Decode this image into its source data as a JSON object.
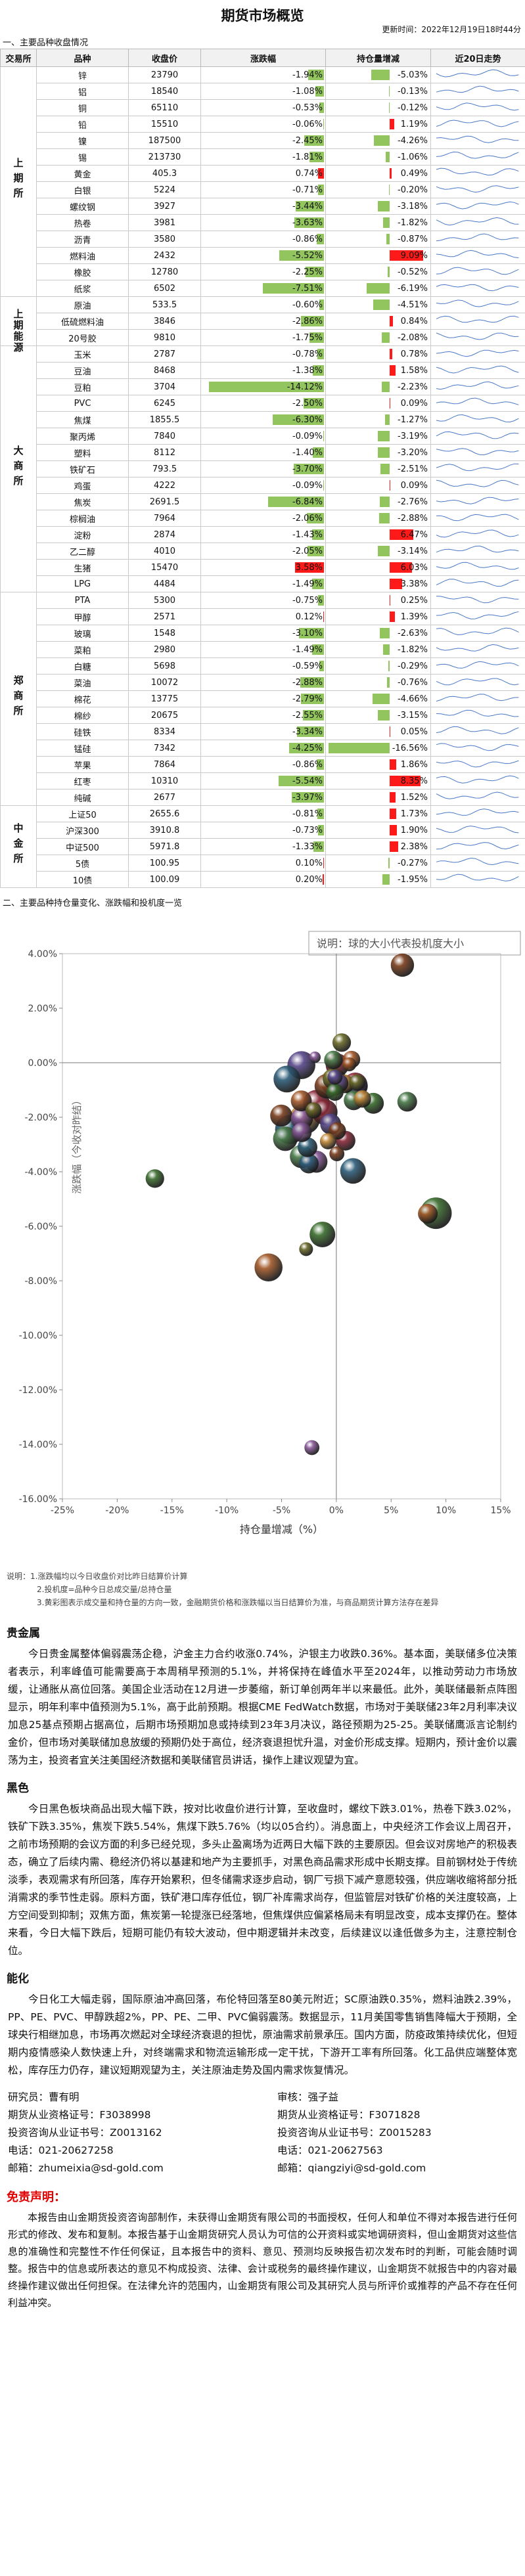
{
  "title": "期货市场概览",
  "updated": "更新时间：2022年12月19日18时44分",
  "section1": "一、主要品种收盘情况",
  "table_header": [
    "交易所",
    "品种",
    "收盘价",
    "涨跌幅",
    "持仓量增减",
    "近20日走势"
  ],
  "bar_colors": {
    "up": "#ff1a1a",
    "down": "#92c55d"
  },
  "exchanges": [
    {
      "name": "上期所",
      "rows": [
        {
          "name": "锌",
          "close": "23790",
          "change": -1.94,
          "change_label": "-1.94%",
          "oi": -5.03,
          "oi_label": "-5.03%"
        },
        {
          "name": "铝",
          "close": "18540",
          "change": -1.08,
          "change_label": "-1.08%",
          "oi": -0.13,
          "oi_label": "-0.13%"
        },
        {
          "name": "铜",
          "close": "65110",
          "change": -0.53,
          "change_label": "-0.53%",
          "oi": -0.12,
          "oi_label": "-0.12%"
        },
        {
          "name": "铅",
          "close": "15510",
          "change": -0.06,
          "change_label": "-0.06%",
          "oi": 1.19,
          "oi_label": "1.19%"
        },
        {
          "name": "镍",
          "close": "187500",
          "change": -2.45,
          "change_label": "-2.45%",
          "oi": -4.26,
          "oi_label": "-4.26%"
        },
        {
          "name": "锡",
          "close": "213730",
          "change": -1.81,
          "change_label": "-1.81%",
          "oi": -1.06,
          "oi_label": "-1.06%"
        },
        {
          "name": "黄金",
          "close": "405.3",
          "change": 0.74,
          "change_label": "0.74%",
          "oi": 0.49,
          "oi_label": "0.49%"
        },
        {
          "name": "白银",
          "close": "5224",
          "change": -0.71,
          "change_label": "-0.71%",
          "oi": -0.2,
          "oi_label": "-0.20%"
        },
        {
          "name": "螺纹钢",
          "close": "3927",
          "change": -3.44,
          "change_label": "-3.44%",
          "oi": -3.18,
          "oi_label": "-3.18%"
        },
        {
          "name": "热卷",
          "close": "3981",
          "change": -3.63,
          "change_label": "-3.63%",
          "oi": -1.82,
          "oi_label": "-1.82%"
        },
        {
          "name": "沥青",
          "close": "3580",
          "change": -0.86,
          "change_label": "-0.86%",
          "oi": -0.87,
          "oi_label": "-0.87%"
        },
        {
          "name": "燃料油",
          "close": "2432",
          "change": -5.52,
          "change_label": "-5.52%",
          "oi": 9.09,
          "oi_label": "9.09%"
        },
        {
          "name": "橡胶",
          "close": "12780",
          "change": -2.25,
          "change_label": "-2.25%",
          "oi": -0.52,
          "oi_label": "-0.52%"
        },
        {
          "name": "纸浆",
          "close": "6502",
          "change": -7.51,
          "change_label": "-7.51%",
          "oi": -6.19,
          "oi_label": "-6.19%"
        }
      ]
    },
    {
      "name": "上期能源",
      "rows": [
        {
          "name": "原油",
          "close": "533.5",
          "change": -0.6,
          "change_label": "-0.60%",
          "oi": -4.51,
          "oi_label": "-4.51%"
        },
        {
          "name": "低硫燃料油",
          "close": "3846",
          "change": -2.86,
          "change_label": "-2.86%",
          "oi": 0.84,
          "oi_label": "0.84%"
        },
        {
          "name": "20号胶",
          "close": "9810",
          "change": -1.75,
          "change_label": "-1.75%",
          "oi": -2.08,
          "oi_label": "-2.08%"
        }
      ]
    },
    {
      "name": "大商所",
      "rows": [
        {
          "name": "玉米",
          "close": "2787",
          "change": -0.78,
          "change_label": "-0.78%",
          "oi": 0.78,
          "oi_label": "0.78%"
        },
        {
          "name": "豆油",
          "close": "8468",
          "change": -1.38,
          "change_label": "-1.38%",
          "oi": 1.58,
          "oi_label": "1.58%"
        },
        {
          "name": "豆粕",
          "close": "3704",
          "change": -14.12,
          "change_label": "-14.12%",
          "oi": -2.23,
          "oi_label": "-2.23%"
        },
        {
          "name": "PVC",
          "close": "6245",
          "change": -2.5,
          "change_label": "-2.50%",
          "oi": 0.09,
          "oi_label": "0.09%"
        },
        {
          "name": "焦煤",
          "close": "1855.5",
          "change": -6.3,
          "change_label": "-6.30%",
          "oi": -1.27,
          "oi_label": "-1.27%"
        },
        {
          "name": "聚丙烯",
          "close": "7840",
          "change": -0.09,
          "change_label": "-0.09%",
          "oi": -3.19,
          "oi_label": "-3.19%"
        },
        {
          "name": "塑料",
          "close": "8112",
          "change": -1.4,
          "change_label": "-1.40%",
          "oi": -3.2,
          "oi_label": "-3.20%"
        },
        {
          "name": "铁矿石",
          "close": "793.5",
          "change": -3.7,
          "change_label": "-3.70%",
          "oi": -2.51,
          "oi_label": "-2.51%"
        },
        {
          "name": "鸡蛋",
          "close": "4222",
          "change": -0.09,
          "change_label": "-0.09%",
          "oi": 0.09,
          "oi_label": "0.09%"
        },
        {
          "name": "焦炭",
          "close": "2691.5",
          "change": -6.84,
          "change_label": "-6.84%",
          "oi": -2.76,
          "oi_label": "-2.76%"
        },
        {
          "name": "棕榈油",
          "close": "7964",
          "change": -2.06,
          "change_label": "-2.06%",
          "oi": -2.88,
          "oi_label": "-2.88%"
        },
        {
          "name": "淀粉",
          "close": "2874",
          "change": -1.43,
          "change_label": "-1.43%",
          "oi": 6.47,
          "oi_label": "6.47%"
        },
        {
          "name": "乙二醇",
          "close": "4010",
          "change": -2.05,
          "change_label": "-2.05%",
          "oi": -3.14,
          "oi_label": "-3.14%"
        },
        {
          "name": "生猪",
          "close": "15470",
          "change": 3.58,
          "change_label": "3.58%",
          "oi": 6.03,
          "oi_label": "6.03%"
        },
        {
          "name": "LPG",
          "close": "4484",
          "change": -1.49,
          "change_label": "-1.49%",
          "oi": 3.38,
          "oi_label": "3.38%"
        }
      ]
    },
    {
      "name": "郑商所",
      "rows": [
        {
          "name": "PTA",
          "close": "5300",
          "change": -0.75,
          "change_label": "-0.75%",
          "oi": 0.25,
          "oi_label": "0.25%"
        },
        {
          "name": "甲醇",
          "close": "2571",
          "change": 0.12,
          "change_label": "0.12%",
          "oi": 1.39,
          "oi_label": "1.39%"
        },
        {
          "name": "玻璃",
          "close": "1548",
          "change": -3.1,
          "change_label": "-3.10%",
          "oi": -2.63,
          "oi_label": "-2.63%"
        },
        {
          "name": "菜粕",
          "close": "2980",
          "change": -1.49,
          "change_label": "-1.49%",
          "oi": -1.82,
          "oi_label": "-1.82%"
        },
        {
          "name": "白糖",
          "close": "5698",
          "change": -0.59,
          "change_label": "-0.59%",
          "oi": -0.29,
          "oi_label": "-0.29%"
        },
        {
          "name": "菜油",
          "close": "10072",
          "change": -2.88,
          "change_label": "-2.88%",
          "oi": -0.76,
          "oi_label": "-0.76%"
        },
        {
          "name": "棉花",
          "close": "13775",
          "change": -2.79,
          "change_label": "-2.79%",
          "oi": -4.66,
          "oi_label": "-4.66%"
        },
        {
          "name": "棉纱",
          "close": "20675",
          "change": -2.55,
          "change_label": "-2.55%",
          "oi": -3.15,
          "oi_label": "-3.15%"
        },
        {
          "name": "硅铁",
          "close": "8334",
          "change": -3.34,
          "change_label": "-3.34%",
          "oi": 0.05,
          "oi_label": "0.05%"
        },
        {
          "name": "锰硅",
          "close": "7342",
          "change": -4.25,
          "change_label": "-4.25%",
          "oi": -16.56,
          "oi_label": "-16.56%"
        },
        {
          "name": "苹果",
          "close": "7864",
          "change": -0.86,
          "change_label": "-0.86%",
          "oi": 1.86,
          "oi_label": "1.86%"
        },
        {
          "name": "红枣",
          "close": "10310",
          "change": -5.54,
          "change_label": "-5.54%",
          "oi": 8.35,
          "oi_label": "8.35%"
        },
        {
          "name": "纯碱",
          "close": "2677",
          "change": -3.97,
          "change_label": "-3.97%",
          "oi": 1.52,
          "oi_label": "1.52%"
        }
      ]
    },
    {
      "name": "中金所",
      "rows": [
        {
          "name": "上证50",
          "close": "2655.6",
          "change": -0.81,
          "change_label": "-0.81%",
          "oi": 1.73,
          "oi_label": "1.73%"
        },
        {
          "name": "沪深300",
          "close": "3910.8",
          "change": -0.73,
          "change_label": "-0.73%",
          "oi": 1.9,
          "oi_label": "1.90%"
        },
        {
          "name": "中证500",
          "close": "5971.8",
          "change": -1.33,
          "change_label": "-1.33%",
          "oi": 2.38,
          "oi_label": "2.38%"
        },
        {
          "name": "5债",
          "close": "100.95",
          "change": 0.1,
          "change_label": "0.10%",
          "oi": -0.27,
          "oi_label": "-0.27%"
        },
        {
          "name": "10债",
          "close": "100.09",
          "change": 0.2,
          "change_label": "0.20%",
          "oi": -1.95,
          "oi_label": "-1.95%"
        }
      ]
    }
  ],
  "section2": "二、主要品种持仓量变化、涨跌幅和投机度一览",
  "chart_data": {
    "type": "bubble",
    "legend_note": "说明：球的大小代表投机度大小",
    "x_label": "持仓量增减（%）",
    "y_label": "涨跌幅（今收对昨结）",
    "categories": [
      "锌",
      "铝",
      "铜",
      "铅",
      "镍",
      "锡",
      "黄金",
      "白银",
      "螺纹钢",
      "热卷",
      "沥青",
      "燃料油",
      "橡胶",
      "纸浆",
      "原油",
      "低硫燃料油",
      "20号胶",
      "玉米",
      "豆油",
      "豆粕",
      "PVC",
      "焦煤",
      "聚丙烯",
      "塑料",
      "铁矿石",
      "鸡蛋",
      "焦炭",
      "棕榈油",
      "淀粉",
      "乙二醇",
      "生猪",
      "LPG",
      "PTA",
      "甲醇",
      "玻璃",
      "菜粕",
      "白糖",
      "菜油",
      "棉花",
      "棉纱",
      "硅铁",
      "锰硅",
      "苹果",
      "红枣",
      "纯碱",
      "上证50",
      "沪深300",
      "中证500",
      "5债",
      "10债"
    ],
    "x": [
      -5.03,
      -0.13,
      -0.12,
      1.19,
      -4.26,
      -1.06,
      0.49,
      -0.2,
      -3.18,
      -1.82,
      -0.87,
      9.09,
      -0.52,
      -6.19,
      -4.51,
      0.84,
      -2.08,
      0.78,
      1.58,
      -2.23,
      0.09,
      -1.27,
      -3.19,
      -3.2,
      -2.51,
      0.09,
      -2.76,
      -2.88,
      6.47,
      -3.14,
      6.03,
      3.38,
      0.25,
      1.39,
      -2.63,
      -1.82,
      -0.29,
      -0.76,
      -4.66,
      -3.15,
      0.05,
      -16.56,
      1.86,
      8.35,
      1.52,
      1.73,
      1.9,
      2.38,
      -0.27,
      -1.95
    ],
    "values": [
      -1.94,
      -1.08,
      -0.53,
      -0.06,
      -2.45,
      -1.81,
      0.74,
      -0.71,
      -3.44,
      -3.63,
      -0.86,
      -5.52,
      -2.25,
      -7.51,
      -0.6,
      -2.86,
      -1.75,
      -0.78,
      -1.38,
      -14.12,
      -2.5,
      -6.3,
      -0.09,
      -1.4,
      -3.7,
      -0.09,
      -6.84,
      -2.06,
      -1.43,
      -2.05,
      3.58,
      -1.49,
      -0.75,
      0.12,
      -3.1,
      -1.49,
      -0.59,
      -2.88,
      -2.79,
      -2.55,
      -3.34,
      -4.25,
      -0.86,
      -5.54,
      -3.97,
      -0.81,
      -0.73,
      -1.33,
      0.1,
      0.2
    ],
    "sizes": [
      1.2,
      0.8,
      0.6,
      0.5,
      1.8,
      1.5,
      0.9,
      1.6,
      1.3,
      1.2,
      1.4,
      2.0,
      1.1,
      1.7,
      1.6,
      1.0,
      0.7,
      0.9,
      1.0,
      0.6,
      0.8,
      1.5,
      1.7,
      1.1,
      1.0,
      1.3,
      0.5,
      1.9,
      1.0,
      1.2,
      1.3,
      1.1,
      0.9,
      0.8,
      1.0,
      1.6,
      1.1,
      0.7,
      1.4,
      1.0,
      0.6,
      0.9,
      1.2,
      1.0,
      1.5,
      1.4,
      0.7,
      0.8,
      0.9,
      0.3
    ],
    "palette": [
      "#7b3f1f",
      "#3c6e2f",
      "#5a4a8c",
      "#a35a2a",
      "#2f5e7a",
      "#8a2a3a",
      "#6b6b2a",
      "#c28a3a",
      "#4a7a4a",
      "#8a5a9a"
    ],
    "xlim": [
      -25,
      15
    ],
    "xticks": [
      {
        "value": -25,
        "label": "-25%"
      },
      {
        "value": -20,
        "label": "-20%"
      },
      {
        "value": -15,
        "label": "-15%"
      },
      {
        "value": -10,
        "label": "-10%"
      },
      {
        "value": -5,
        "label": "-5%"
      },
      {
        "value": 0,
        "label": "0%"
      },
      {
        "value": 5,
        "label": "5%"
      },
      {
        "value": 10,
        "label": "10%"
      },
      {
        "value": 15,
        "label": "15%"
      }
    ],
    "ylim": [
      -16,
      4
    ],
    "yticks": [
      {
        "value": 4,
        "label": "4.00%"
      },
      {
        "value": 2,
        "label": "2.00%"
      },
      {
        "value": 0,
        "label": "0.00%"
      },
      {
        "value": -2,
        "label": "-2.00%"
      },
      {
        "value": -4,
        "label": "-4.00%"
      },
      {
        "value": -6,
        "label": "-6.00%"
      },
      {
        "value": -8,
        "label": "-8.00%"
      },
      {
        "value": -10,
        "label": "-10.00%"
      },
      {
        "value": -12,
        "label": "-12.00%"
      },
      {
        "value": -14,
        "label": "-14.00%"
      },
      {
        "value": -16,
        "label": "-16.00%"
      }
    ]
  },
  "notes": [
    "说明：1.涨跌幅均以今日收盘价对比昨日结算价计算",
    "2.投机度=品种今日总成交量/总持仓量",
    "3.黄彩图表示成交量和持仓量的方向一致，金融期货价格和涨跌幅以当日结算价为准，与商品期货计算方法存在差异"
  ],
  "sections": [
    {
      "title": "贵金属",
      "paragraphs": [
        "今日贵金属整体偏弱震荡企稳，沪金主力合约收涨0.74%，沪银主力收跌0.36%。基本面，美联储多位决策者表示，利率峰值可能需要高于本周稍早预测的5.1%，并将保持在峰值水平至2024年，以推动劳动力市场放缓，让通胀从高位回落。美国企业活动在12月进一步萎缩，新订单创两年半以来最低。此外，美联储最新点阵图显示，明年利率中值预测为5.1%，高于此前预期。根据CME FedWatch数据，市场对于美联储23年2月利率决议加息25基点预期占据高位，后期市场预期加息或持续到23年3月决议，路径预期为25-25。美联储鹰派言论制约金价，但市场对美联储加息放缓的预期仍处于高位，经济衰退担忧升温，对金价形成支撑。短期内，预计金价以震荡为主，投资者宜关注美国经济数据和美联储官员讲话，操作上建议观望为宜。"
      ]
    },
    {
      "title": "黑色",
      "paragraphs": [
        "今日黑色板块商品出现大幅下跌，按对比收盘价进行计算，至收盘时，螺纹下跌3.01%，热卷下跌3.02%，铁矿下跌3.35%，焦炭下跌5.54%，焦煤下跌5.76%（均以05合约）。消息面上，中央经济工作会议上周召开，之前市场预期的会议方面的利多已经兑现，多头止盈离场为近两日大幅下跌的主要原因。但会议对房地产的积极表态，确立了后续内需、稳经济仍将以基建和地产为主要抓手，对黑色商品需求形成中长期支撑。目前钢材处于传统淡季，表观需求有所回落，库存开始累积，但冬储需求逐步启动，钢厂亏损下减产意愿较强，供应端收缩将部分抵消需求的季节性走弱。原料方面，铁矿港口库存低位，钢厂补库需求尚存，但监管层对铁矿价格的关注度较高，上方空间受到抑制；双焦方面，焦炭第一轮提涨已经落地，但焦煤供应偏紧格局未有明显改变，成本支撑仍在。整体来看，今日大幅下跌后，短期可能仍有较大波动，但中期逻辑并未改变，后续建议以逢低做多为主，注意控制仓位。"
      ]
    },
    {
      "title": "能化",
      "paragraphs": [
        "今日化工大幅走弱，国际原油冲高回落，布伦特回落至80美元附近；SC原油跌0.35%，燃料油跌2.39%，PP、PE、PVC、甲醇跌超2%，PP、PE、二甲、PVC偏弱震荡。数据显示，11月美国零售销售降幅大于预期，全球央行相继加息，市场再次燃起对全球经济衰退的担忧，原油需求前景承压。国内方面，防疫政策持续优化，但短期内疫情感染人数快速上升，对终端需求和物流运输形成一定干扰，下游开工率有所回落。化工品供应端整体宽松，库存压力仍存，建议短期观望为主，关注原油走势及国内需求恢复情况。"
      ]
    }
  ],
  "contacts": [
    [
      "研究员：曹有明",
      "审核：强子益"
    ],
    [
      "期货从业资格证号：F3038998",
      "期货从业资格证号：F3071828"
    ],
    [
      "投资咨询从业证书号：Z0013162",
      "投资咨询从业证书号：Z0015283"
    ],
    [
      "电话：021-20627258",
      "电话：021-20627563"
    ],
    [
      "邮箱：zhumeixia@sd-gold.com",
      "邮箱：qiangziyi@sd-gold.com"
    ]
  ],
  "disclaimer": {
    "title": "免责声明：",
    "text": "本报告由山金期货投资咨询部制作，未获得山金期货有限公司的书面授权，任何人和单位不得对本报告进行任何形式的修改、发布和复制。本报告基于山金期货研究人员认为可信的公开资料或实地调研资料，但山金期货对这些信息的准确性和完整性不作任何保证，且本报告中的资料、意见、预测均反映报告初次发布时的判断，可能会随时调整。报告中的信息或所表达的意见不构成投资、法律、会计或税务的最终操作建议，山金期货不就报告中的内容对最终操作建议做出任何担保。在法律允许的范围内，山金期货有限公司及其研究人员与所评价或推荐的产品不存在任何利益冲突。"
  }
}
